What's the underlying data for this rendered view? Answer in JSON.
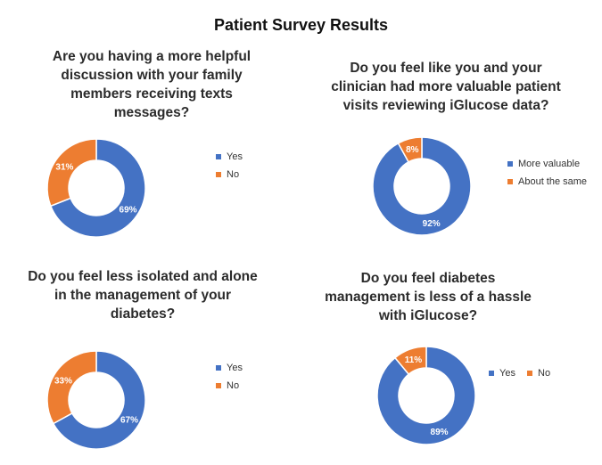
{
  "title": "Patient Survey Results",
  "colors": {
    "yes": "#4472C4",
    "no": "#ED7D31"
  },
  "chart_data": [
    {
      "type": "pie",
      "title": "Are you having a more helpful\ndiscussion with your family\nmembers receiving texts\nmessages?",
      "categories": [
        "Yes",
        "No"
      ],
      "values": [
        69,
        31
      ],
      "data_labels": [
        "69%",
        "31%"
      ],
      "colors": [
        "#4472C4",
        "#ED7D31"
      ],
      "legend": "right"
    },
    {
      "type": "pie",
      "title": "Do you feel like you and your\nclinician had more valuable patient\nvisits reviewing iGlucose data?",
      "categories": [
        "More valuable",
        "About the same"
      ],
      "values": [
        92,
        8
      ],
      "data_labels": [
        "92%",
        "8%"
      ],
      "colors": [
        "#4472C4",
        "#ED7D31"
      ],
      "legend": "right"
    },
    {
      "type": "pie",
      "title": "Do you feel less isolated and alone\nin the management of your\ndiabetes?",
      "categories": [
        "Yes",
        "No"
      ],
      "values": [
        67,
        33
      ],
      "data_labels": [
        "67%",
        "33%"
      ],
      "colors": [
        "#4472C4",
        "#ED7D31"
      ],
      "legend": "right"
    },
    {
      "type": "pie",
      "title": "Do you feel diabetes\nmanagement is less of a hassle\nwith iGlucose?",
      "categories": [
        "Yes",
        "No"
      ],
      "values": [
        89,
        11
      ],
      "data_labels": [
        "89%",
        "11%"
      ],
      "colors": [
        "#4472C4",
        "#ED7D31"
      ],
      "legend": "right-inline"
    }
  ]
}
